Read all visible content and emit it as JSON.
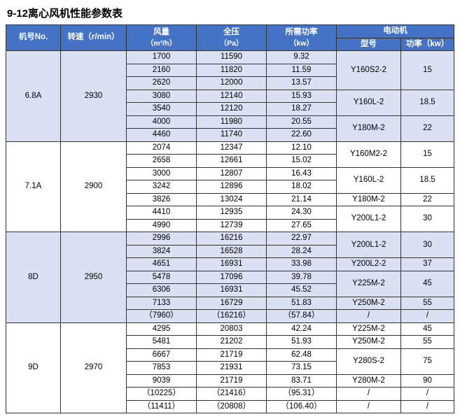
{
  "title": "9-12离心风机性能参数表",
  "columns": {
    "model": "机号No.",
    "speed": "转速（r/min）",
    "flow": "风量",
    "flow_unit": "（m³/h）",
    "pressure": "全压",
    "pressure_unit": "（Pa）",
    "power_req": "所需功率",
    "power_req_unit": "（kw）",
    "motor": "电动机",
    "motor_model": "型号",
    "motor_power": "功率（kw）"
  },
  "colors": {
    "header_bg": "#4472c4",
    "header_fg": "#ffffff",
    "band_a": "#d9e1f2",
    "band_b": "#ffffff",
    "border": "#333333"
  },
  "groups": [
    {
      "model": "6.8A",
      "speed": "2930",
      "shade": "a",
      "rows": [
        {
          "flow": "1700",
          "pressure": "11590",
          "power": "9.32",
          "motor": "Y160S2-2",
          "mp": "15",
          "mrows": 3
        },
        {
          "flow": "2160",
          "pressure": "11820",
          "power": "11.59"
        },
        {
          "flow": "2620",
          "pressure": "12000",
          "power": "13.57"
        },
        {
          "flow": "3080",
          "pressure": "12140",
          "power": "15.93",
          "motor": "Y160L-2",
          "mp": "18.5",
          "mrows": 2
        },
        {
          "flow": "3540",
          "pressure": "12120",
          "power": "18.27"
        },
        {
          "flow": "4000",
          "pressure": "11980",
          "power": "20.55",
          "motor": "Y180M-2",
          "mp": "22",
          "mrows": 2
        },
        {
          "flow": "4460",
          "pressure": "11740",
          "power": "22.60"
        }
      ]
    },
    {
      "model": "7.1A",
      "speed": "2900",
      "shade": "b",
      "rows": [
        {
          "flow": "2074",
          "pressure": "12347",
          "power": "12.10",
          "motor": "Y160M2-2",
          "mp": "15",
          "mrows": 2
        },
        {
          "flow": "2658",
          "pressure": "12661",
          "power": "15.02"
        },
        {
          "flow": "3000",
          "pressure": "12807",
          "power": "16.43",
          "motor": "Y160L-2",
          "mp": "18.5",
          "mrows": 2
        },
        {
          "flow": "3242",
          "pressure": "12896",
          "power": "18.02"
        },
        {
          "flow": "3826",
          "pressure": "13024",
          "power": "21.14",
          "motor": "Y180M-2",
          "mp": "22",
          "mrows": 1
        },
        {
          "flow": "4410",
          "pressure": "12935",
          "power": "24.30",
          "motor": "Y200L1-2",
          "mp": "30",
          "mrows": 2
        },
        {
          "flow": "4990",
          "pressure": "12739",
          "power": "27.65"
        }
      ]
    },
    {
      "model": "8D",
      "speed": "2950",
      "shade": "a",
      "rows": [
        {
          "flow": "2996",
          "pressure": "16216",
          "power": "22.97",
          "motor": "Y200L1-2",
          "mp": "30",
          "mrows": 2
        },
        {
          "flow": "3824",
          "pressure": "16528",
          "power": "28.24"
        },
        {
          "flow": "4651",
          "pressure": "16931",
          "power": "33.98",
          "motor": "Y200L2-2",
          "mp": "37",
          "mrows": 1
        },
        {
          "flow": "5478",
          "pressure": "17096",
          "power": "39.78",
          "motor": "Y225M-2",
          "mp": "45",
          "mrows": 2
        },
        {
          "flow": "6306",
          "pressure": "16931",
          "power": "45.52"
        },
        {
          "flow": "7133",
          "pressure": "16729",
          "power": "51.83",
          "motor": "Y250M-2",
          "mp": "55",
          "mrows": 1
        },
        {
          "flow": "（7960）",
          "pressure": "（16216）",
          "power": "（57.84）",
          "motor": "/",
          "mp": "/",
          "mrows": 1
        }
      ]
    },
    {
      "model": "9D",
      "speed": "2970",
      "shade": "b",
      "rows": [
        {
          "flow": "4295",
          "pressure": "20803",
          "power": "42.24",
          "motor": "Y225M-2",
          "mp": "45",
          "mrows": 1
        },
        {
          "flow": "5481",
          "pressure": "21202",
          "power": "51.93",
          "motor": "Y250M-2",
          "mp": "55",
          "mrows": 1
        },
        {
          "flow": "6667",
          "pressure": "21719",
          "power": "62.48",
          "motor": "Y280S-2",
          "mp": "75",
          "mrows": 2
        },
        {
          "flow": "7853",
          "pressure": "21931",
          "power": "73.15"
        },
        {
          "flow": "9039",
          "pressure": "21719",
          "power": "83.71",
          "motor": "Y280M-2",
          "mp": "90",
          "mrows": 1
        },
        {
          "flow": "（10225）",
          "pressure": "（21416）",
          "power": "（95.31）",
          "motor": "/",
          "mp": "/",
          "mrows": 1
        },
        {
          "flow": "（11411）",
          "pressure": "（20808）",
          "power": "（106.40）",
          "motor": "/",
          "mp": "/",
          "mrows": 1
        }
      ]
    }
  ]
}
